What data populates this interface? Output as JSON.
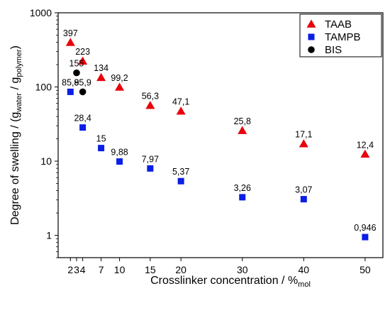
{
  "chart_data": {
    "type": "scatter",
    "xlabel": {
      "main": "Crosslinker concentration / %",
      "sub": "mol"
    },
    "ylabel": {
      "prefix": "Degree of swelling / (g",
      "sub1": "water",
      "mid": " / g",
      "sub2": "polymer",
      "suffix": ")"
    },
    "yscale": "log",
    "ylim": [
      0.5,
      1000
    ],
    "x_positions": [
      2,
      3,
      4,
      7,
      10,
      15,
      20,
      30,
      40,
      50
    ],
    "xticks": [
      "2",
      "3",
      "4",
      "7",
      "10",
      "15",
      "20",
      "30",
      "40",
      "50"
    ],
    "yticks": [
      {
        "value": 1,
        "label": "1"
      },
      {
        "value": 10,
        "label": "10"
      },
      {
        "value": 100,
        "label": "100"
      },
      {
        "value": 1000,
        "label": "1000"
      }
    ],
    "grid": false,
    "legend_position": "top-right",
    "series": [
      {
        "name": "TAAB",
        "marker": "triangle",
        "color": "#e8000b",
        "x": [
          "2",
          "4",
          "7",
          "10",
          "15",
          "20",
          "30",
          "40",
          "50"
        ],
        "values": [
          397,
          223,
          134,
          99.2,
          56.3,
          47.1,
          25.8,
          17.1,
          12.4
        ],
        "labels": [
          "397",
          "223",
          "134",
          "99,2",
          "56,3",
          "47,1",
          "25,8",
          "17,1",
          "12,4"
        ]
      },
      {
        "name": "TAMPB",
        "marker": "square",
        "color": "#0a1ee6",
        "x": [
          "2",
          "4",
          "7",
          "10",
          "15",
          "20",
          "30",
          "40",
          "50"
        ],
        "values": [
          85.9,
          28.4,
          15,
          9.88,
          7.97,
          5.37,
          3.26,
          3.07,
          0.946
        ],
        "labels": [
          "85,9",
          "28,4",
          "15",
          "9,88",
          "7,97",
          "5,37",
          "3,26",
          "3,07",
          "0,946"
        ]
      },
      {
        "name": "BIS",
        "marker": "circle",
        "color": "#000000",
        "x": [
          "3",
          "4"
        ],
        "values": [
          155,
          85.9
        ],
        "labels": [
          "155",
          "85,9"
        ]
      }
    ]
  }
}
